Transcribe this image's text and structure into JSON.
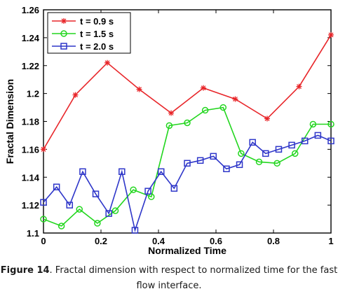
{
  "chart_data": {
    "type": "line",
    "title": "",
    "xlabel": "Normalized Time",
    "ylabel": "Fractal Dimension",
    "xlim": [
      0,
      1
    ],
    "ylim": [
      1.1,
      1.26
    ],
    "xticks": [
      0,
      0.2,
      0.4,
      0.6,
      0.8,
      1
    ],
    "xtick_labels": [
      "0",
      "0.2",
      "0.4",
      "0.6",
      "0.8",
      "1"
    ],
    "yticks": [
      1.1,
      1.12,
      1.14,
      1.16,
      1.18,
      1.2,
      1.22,
      1.24,
      1.26
    ],
    "ytick_labels": [
      "1.1",
      "1.12",
      "1.14",
      "1.16",
      "1.18",
      "1.2",
      "1.22",
      "1.24",
      "1.26"
    ],
    "grid": false,
    "legend_position": "top-left",
    "series": [
      {
        "name": "t = 0.9 s",
        "color": "#e8262a",
        "marker": "star",
        "x": [
          0,
          0.111,
          0.222,
          0.333,
          0.444,
          0.556,
          0.667,
          0.778,
          0.889,
          1.0
        ],
        "y": [
          1.16,
          1.199,
          1.222,
          1.203,
          1.186,
          1.204,
          1.196,
          1.182,
          1.205,
          1.242
        ]
      },
      {
        "name": "t = 1.5 s",
        "color": "#22d61e",
        "marker": "circle",
        "x": [
          0,
          0.0625,
          0.125,
          0.1875,
          0.25,
          0.3125,
          0.375,
          0.4375,
          0.5,
          0.5625,
          0.625,
          0.6875,
          0.75,
          0.8125,
          0.875,
          0.9375,
          1.0
        ],
        "y": [
          1.11,
          1.105,
          1.117,
          1.107,
          1.116,
          1.131,
          1.126,
          1.177,
          1.179,
          1.188,
          1.19,
          1.157,
          1.151,
          1.15,
          1.157,
          1.178,
          1.178
        ]
      },
      {
        "name": "t = 2.0 s",
        "color": "#2e36c9",
        "marker": "square",
        "x": [
          0,
          0.0455,
          0.0909,
          0.1364,
          0.1818,
          0.2273,
          0.2727,
          0.3182,
          0.3636,
          0.4091,
          0.4545,
          0.5,
          0.5455,
          0.5909,
          0.6364,
          0.6818,
          0.7273,
          0.7727,
          0.8182,
          0.8636,
          0.9091,
          0.9545,
          1.0
        ],
        "y": [
          1.122,
          1.133,
          1.12,
          1.144,
          1.128,
          1.114,
          1.144,
          1.102,
          1.13,
          1.144,
          1.132,
          1.15,
          1.152,
          1.155,
          1.146,
          1.149,
          1.165,
          1.157,
          1.16,
          1.163,
          1.166,
          1.17,
          1.166
        ]
      }
    ]
  },
  "caption": {
    "label": "Figure 14",
    "text_line1": ". Fractal dimension with respect to normalized time for the fast",
    "text_line2": "flow interface."
  }
}
